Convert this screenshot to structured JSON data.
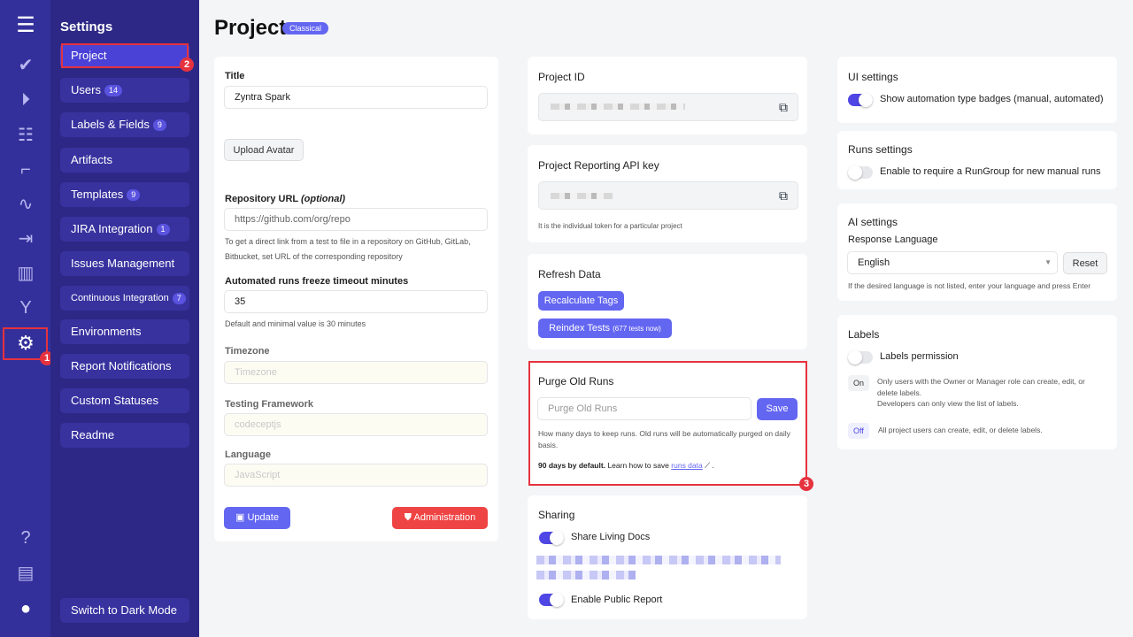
{
  "rail": {
    "icons": [
      "menu-icon",
      "check-icon",
      "play-icon",
      "checklist-icon",
      "steps-icon",
      "pulse-icon",
      "import-icon",
      "analytics-icon",
      "branch-icon",
      "gear-icon",
      "help-icon",
      "folder-icon",
      "user-avatar-icon"
    ]
  },
  "sidebar": {
    "title": "Settings",
    "items": [
      {
        "label": "Project",
        "badge": null
      },
      {
        "label": "Users",
        "badge": "14"
      },
      {
        "label": "Labels & Fields",
        "badge": "9"
      },
      {
        "label": "Artifacts",
        "badge": null
      },
      {
        "label": "Templates",
        "badge": "9"
      },
      {
        "label": "JIRA Integration",
        "badge": "1"
      },
      {
        "label": "Issues Management",
        "badge": null
      },
      {
        "label": "Continuous Integration",
        "badge": "7"
      },
      {
        "label": "Environments",
        "badge": null
      },
      {
        "label": "Report Notifications",
        "badge": null
      },
      {
        "label": "Custom Statuses",
        "badge": null
      },
      {
        "label": "Readme",
        "badge": null
      }
    ],
    "dark_mode": "Switch to Dark Mode"
  },
  "annotations": [
    "1",
    "2",
    "3"
  ],
  "header": {
    "title": "Project",
    "badge": "Classical"
  },
  "project": {
    "title_label": "Title",
    "title_value": "Zyntra Spark",
    "upload": "Upload Avatar",
    "repo_label": "Repository URL",
    "repo_optional": "(optional)",
    "repo_value": "https://github.com/org/repo",
    "repo_hint": "To get a direct link from a test to file in a repository on GitHub, GitLab, Bitbucket, set URL of the corresponding repository",
    "freeze_label": "Automated runs freeze timeout minutes",
    "freeze_value": "35",
    "freeze_hint": "Default and minimal value is 30 minutes",
    "tz_label": "Timezone",
    "tz_placeholder": "Timezone",
    "fw_label": "Testing Framework",
    "fw_placeholder": "codeceptjs",
    "lang_label": "Language",
    "lang_placeholder": "JavaScript",
    "update": "Update",
    "admin": "Administration"
  },
  "project_id": {
    "title": "Project ID"
  },
  "api_key": {
    "title": "Project Reporting API key",
    "hint": "It is the individual token for a particular project"
  },
  "refresh": {
    "title": "Refresh Data",
    "recalc": "Recalculate Tags",
    "reindex": "Reindex Tests",
    "reindex_count": "(677 tests now)"
  },
  "purge": {
    "title": "Purge Old Runs",
    "placeholder": "Purge Old Runs",
    "save": "Save",
    "hint": "How many days to keep runs. Old runs will be automatically purged on daily basis.",
    "default_bold": "90 days by default.",
    "learn": "Learn how to save",
    "link": "runs data"
  },
  "sharing": {
    "title": "Sharing",
    "living_docs": "Share Living Docs",
    "living_docs_on": true,
    "public_report": "Enable Public Report",
    "public_report_on": true
  },
  "ui": {
    "title": "UI settings",
    "badges": "Show automation type badges (manual, automated)",
    "badges_on": true
  },
  "runs": {
    "title": "Runs settings",
    "rungroup": "Enable to require a RunGroup for new manual runs",
    "rungroup_on": false
  },
  "ai": {
    "title": "AI settings",
    "lang_label": "Response Language",
    "lang_value": "English",
    "reset": "Reset",
    "hint": "If the desired language is not listed, enter your language and press Enter"
  },
  "labels": {
    "title": "Labels",
    "perm": "Labels permission",
    "perm_on": false,
    "on": "On",
    "on_desc1": "Only users with the Owner or Manager role can create, edit, or delete labels.",
    "on_desc2": "Developers can only view the list of labels.",
    "off": "Off",
    "off_desc": "All project users can create, edit, or delete labels."
  }
}
